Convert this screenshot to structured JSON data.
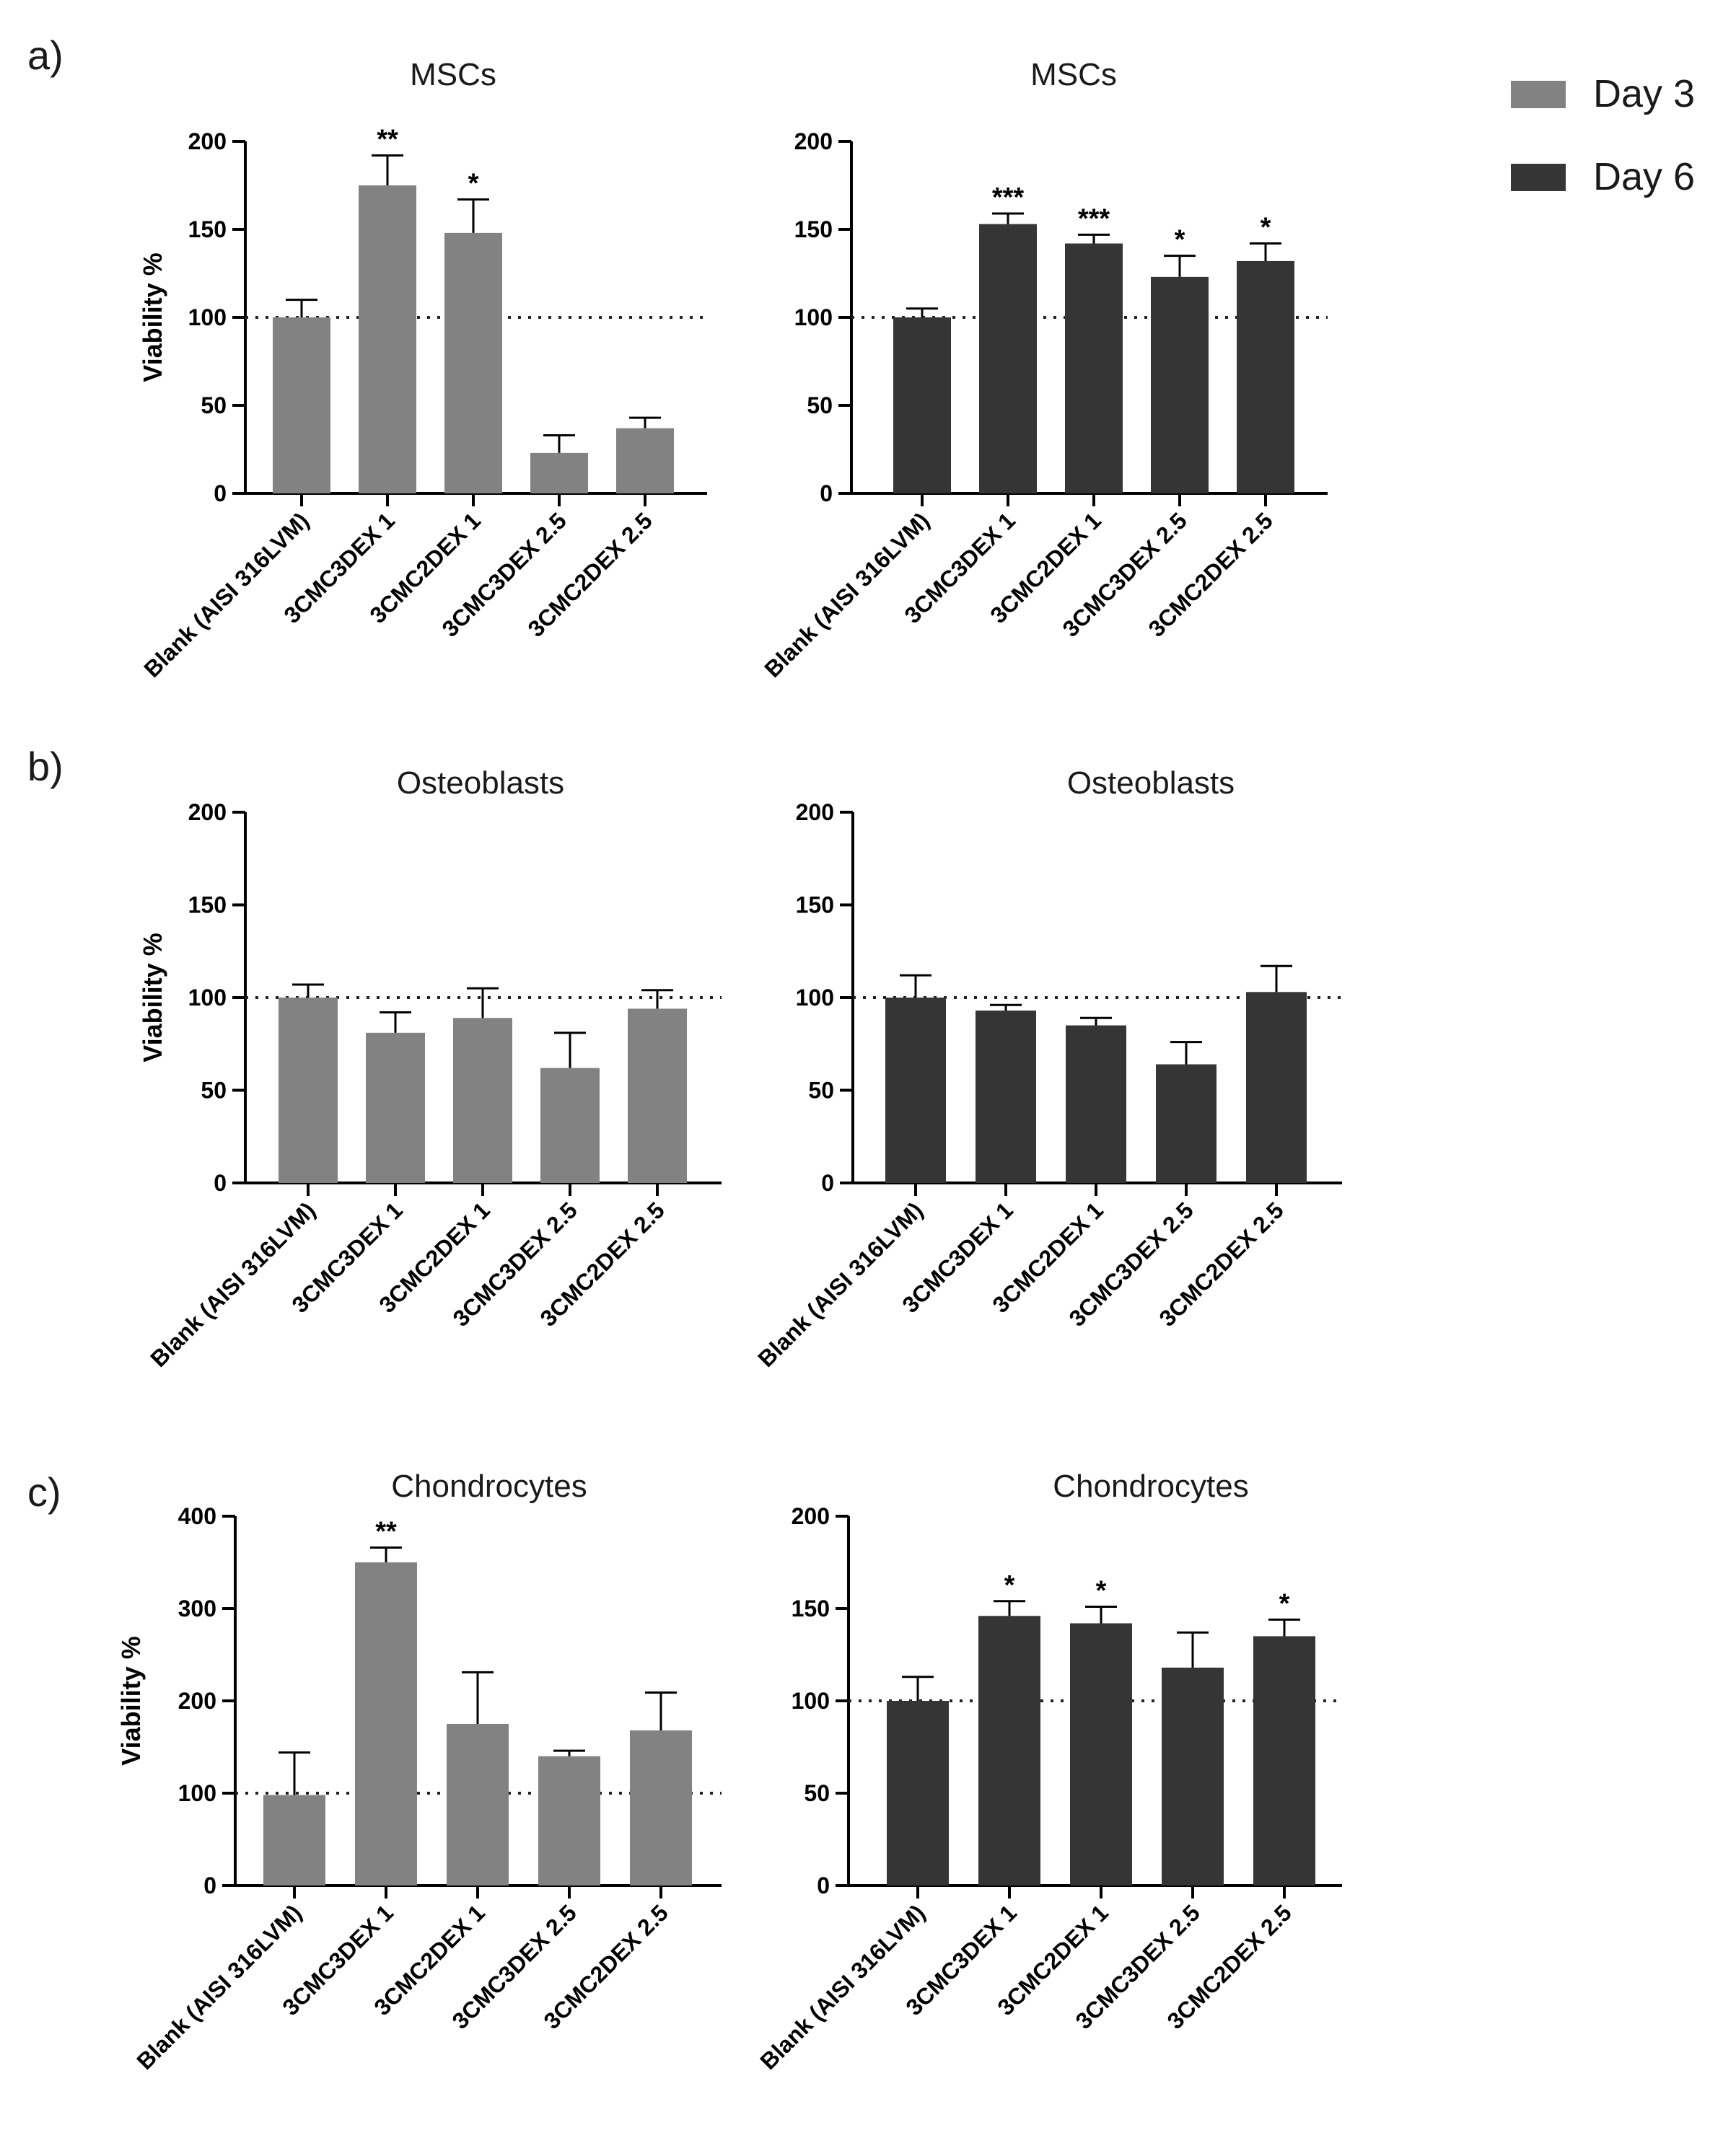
{
  "panel_letters": [
    "a)",
    "b)",
    "c)"
  ],
  "legend": [
    {
      "label": "Day 3",
      "color": "#828282"
    },
    {
      "label": "Day 6",
      "color": "#353535"
    }
  ],
  "chart_data": [
    {
      "type": "bar",
      "panel": "a)",
      "series_day": "Day 3",
      "title": "MSCs",
      "ylabel": "Viability %",
      "categories": [
        "Blank (AISI 316LVM)",
        "3CMC3DEX 1",
        "3CMC2DEX 1",
        "3CMC3DEX 2.5",
        "3CMC2DEX 2.5"
      ],
      "values": [
        100,
        175,
        148,
        23,
        37
      ],
      "error_upper": [
        110,
        192,
        167,
        33,
        43
      ],
      "significance": [
        "",
        "**",
        "*",
        "",
        ""
      ],
      "ylim": [
        0,
        200
      ],
      "yticks": [
        0,
        50,
        100,
        150,
        200
      ],
      "reference_line": 100,
      "color": "#828282"
    },
    {
      "type": "bar",
      "panel": "a)",
      "series_day": "Day 6",
      "title": "MSCs",
      "ylabel": "",
      "categories": [
        "Blank (AISI 316LVM)",
        "3CMC3DEX 1",
        "3CMC2DEX 1",
        "3CMC3DEX 2.5",
        "3CMC2DEX 2.5"
      ],
      "values": [
        100,
        153,
        142,
        123,
        132
      ],
      "error_upper": [
        105,
        159,
        147,
        135,
        142
      ],
      "significance": [
        "",
        "***",
        "***",
        "*",
        "*"
      ],
      "ylim": [
        0,
        200
      ],
      "yticks": [
        0,
        50,
        100,
        150,
        200
      ],
      "reference_line": 100,
      "color": "#353535"
    },
    {
      "type": "bar",
      "panel": "b)",
      "series_day": "Day 3",
      "title": "Osteoblasts",
      "ylabel": "Viability %",
      "categories": [
        "Blank (AISI 316LVM)",
        "3CMC3DEX 1",
        "3CMC2DEX 1",
        "3CMC3DEX 2.5",
        "3CMC2DEX 2.5"
      ],
      "values": [
        100,
        81,
        89,
        62,
        94
      ],
      "error_upper": [
        107,
        92,
        105,
        81,
        104
      ],
      "significance": [
        "",
        "",
        "",
        "",
        ""
      ],
      "ylim": [
        0,
        200
      ],
      "yticks": [
        0,
        50,
        100,
        150,
        200
      ],
      "reference_line": 100,
      "color": "#828282"
    },
    {
      "type": "bar",
      "panel": "b)",
      "series_day": "Day 6",
      "title": "Osteoblasts",
      "ylabel": "",
      "categories": [
        "Blank (AISI 316LVM)",
        "3CMC3DEX 1",
        "3CMC2DEX 1",
        "3CMC3DEX 2.5",
        "3CMC2DEX 2.5"
      ],
      "values": [
        100,
        93,
        85,
        64,
        103
      ],
      "error_upper": [
        112,
        96,
        89,
        76,
        117
      ],
      "significance": [
        "",
        "",
        "",
        "",
        ""
      ],
      "ylim": [
        0,
        200
      ],
      "yticks": [
        0,
        50,
        100,
        150,
        200
      ],
      "reference_line": 100,
      "color": "#353535"
    },
    {
      "type": "bar",
      "panel": "c)",
      "series_day": "Day 3",
      "title": "Chondrocytes",
      "ylabel": "Viability %",
      "categories": [
        "Blank (AISI 316LVM)",
        "3CMC3DEX 1",
        "3CMC2DEX 1",
        "3CMC3DEX 2.5",
        "3CMC2DEX 2.5"
      ],
      "values": [
        98,
        350,
        175,
        140,
        168
      ],
      "error_upper": [
        144,
        366,
        231,
        146,
        209
      ],
      "significance": [
        "",
        "**",
        "",
        "",
        ""
      ],
      "ylim": [
        0,
        400
      ],
      "yticks": [
        0,
        100,
        200,
        300,
        400
      ],
      "reference_line": 100,
      "color": "#828282"
    },
    {
      "type": "bar",
      "panel": "c)",
      "series_day": "Day 6",
      "title": "Chondrocytes",
      "ylabel": "",
      "categories": [
        "Blank (AISI 316LVM)",
        "3CMC3DEX 1",
        "3CMC2DEX 1",
        "3CMC3DEX 2.5",
        "3CMC2DEX 2.5"
      ],
      "values": [
        100,
        146,
        142,
        118,
        135
      ],
      "error_upper": [
        113,
        154,
        151,
        137,
        144
      ],
      "significance": [
        "",
        "*",
        "*",
        "",
        "*"
      ],
      "ylim": [
        0,
        200
      ],
      "yticks": [
        0,
        50,
        100,
        150,
        200
      ],
      "reference_line": 100,
      "color": "#353535"
    }
  ]
}
